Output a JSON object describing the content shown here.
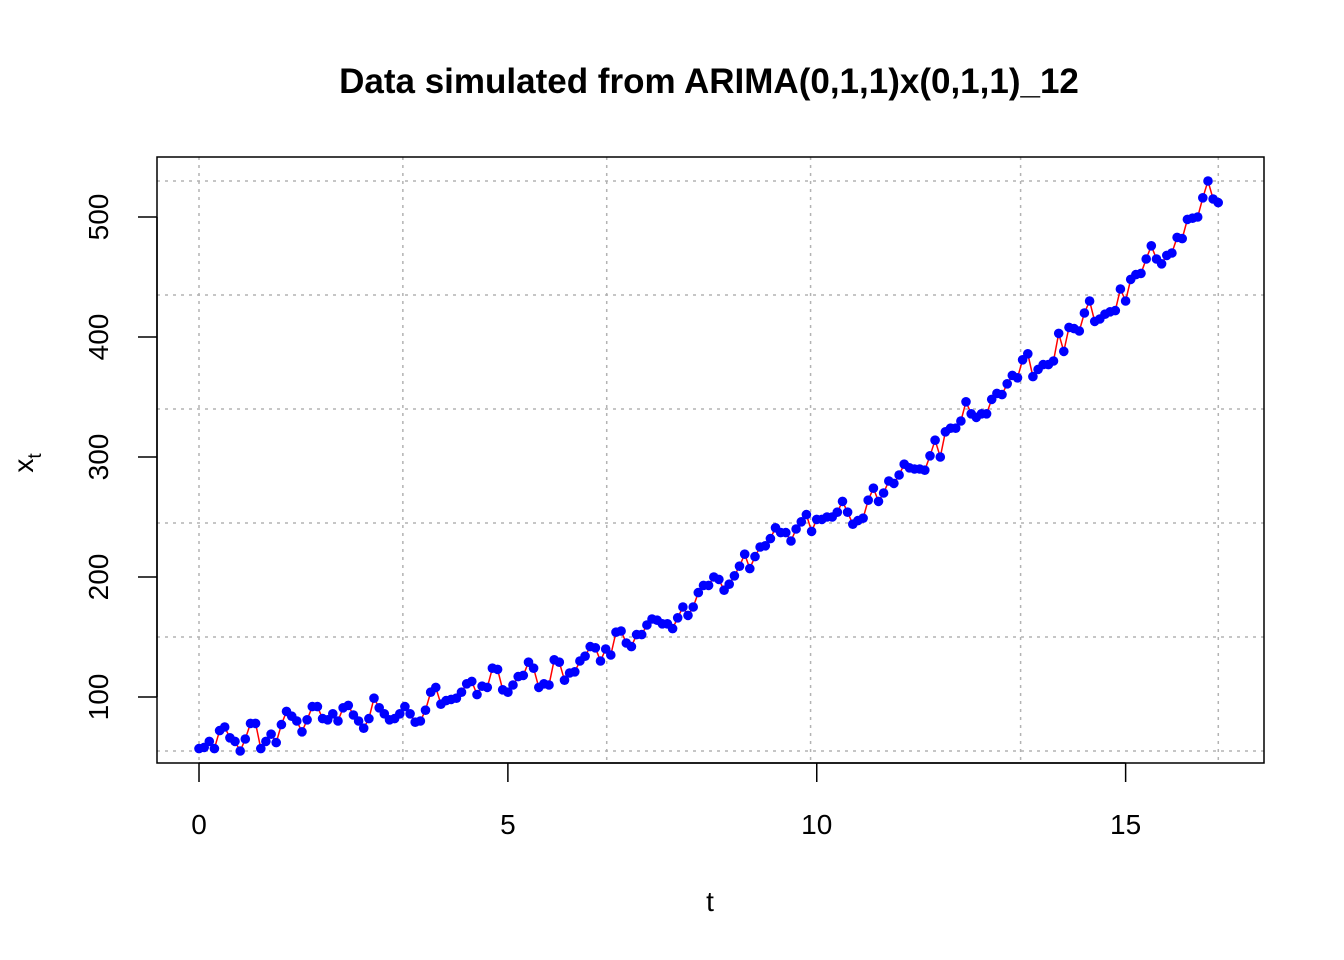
{
  "chart_data": {
    "type": "line",
    "title": "Data simulated from ARIMA(0,1,1)x(0,1,1)_12",
    "xlabel": "t",
    "ylabel_base": "x",
    "ylabel_sub": "t",
    "xlim": [
      -0.68,
      17.24
    ],
    "ylim": [
      45,
      550
    ],
    "xticks": [
      0,
      5,
      10,
      15
    ],
    "xtick_labels": [
      "0",
      "5",
      "10",
      "15"
    ],
    "yticks": [
      100,
      200,
      300,
      400,
      500
    ],
    "ytick_labels": [
      "100",
      "200",
      "300",
      "400",
      "500"
    ],
    "grid": true,
    "grid_x": [
      0,
      3.3,
      6.6,
      9.9,
      13.3,
      16.5
    ],
    "grid_y": [
      55,
      150,
      245,
      340,
      435,
      530
    ],
    "line_color": "#ff0000",
    "point_color": "#0000ff",
    "grid_color": "#b3b3b3",
    "series": [
      {
        "x_start": 0,
        "x_step": 0.08333,
        "values": [
          57,
          58,
          63,
          57,
          72,
          75,
          66,
          63,
          55,
          65,
          78,
          78,
          57,
          63,
          69,
          62,
          77,
          88,
          84,
          80,
          71,
          81,
          92,
          92,
          82,
          81,
          86,
          80,
          91,
          93,
          85,
          80,
          74,
          82,
          99,
          91,
          86,
          81,
          82,
          86,
          92,
          86,
          79,
          80,
          89,
          104,
          108,
          94,
          97,
          98,
          99,
          104,
          111,
          113,
          102,
          109,
          108,
          124,
          123,
          106,
          104,
          110,
          117,
          118,
          129,
          124,
          108,
          111,
          110,
          131,
          129,
          114,
          120,
          121,
          130,
          134,
          142,
          141,
          130,
          140,
          135,
          154,
          155,
          145,
          142,
          152,
          152,
          160,
          165,
          164,
          161,
          161,
          157,
          166,
          175,
          168,
          175,
          187,
          193,
          193,
          200,
          198,
          189,
          194,
          201,
          209,
          219,
          207,
          217,
          225,
          226,
          232,
          241,
          237,
          237,
          230,
          240,
          246,
          252,
          238,
          248,
          248,
          250,
          250,
          254,
          263,
          254,
          244,
          247,
          249,
          264,
          274,
          263,
          270,
          280,
          278,
          285,
          294,
          291,
          290,
          290,
          289,
          301,
          314,
          300,
          321,
          324,
          324,
          330,
          346,
          336,
          333,
          336,
          336,
          348,
          353,
          352,
          361,
          368,
          366,
          381,
          386,
          367,
          373,
          377,
          377,
          380,
          403,
          388,
          408,
          407,
          405,
          420,
          430,
          413,
          415,
          419,
          421,
          422,
          440,
          430,
          448,
          452,
          453,
          465,
          476,
          465,
          461,
          468,
          470,
          483,
          482,
          498,
          499,
          500,
          516,
          530,
          515,
          512
        ]
      }
    ]
  }
}
